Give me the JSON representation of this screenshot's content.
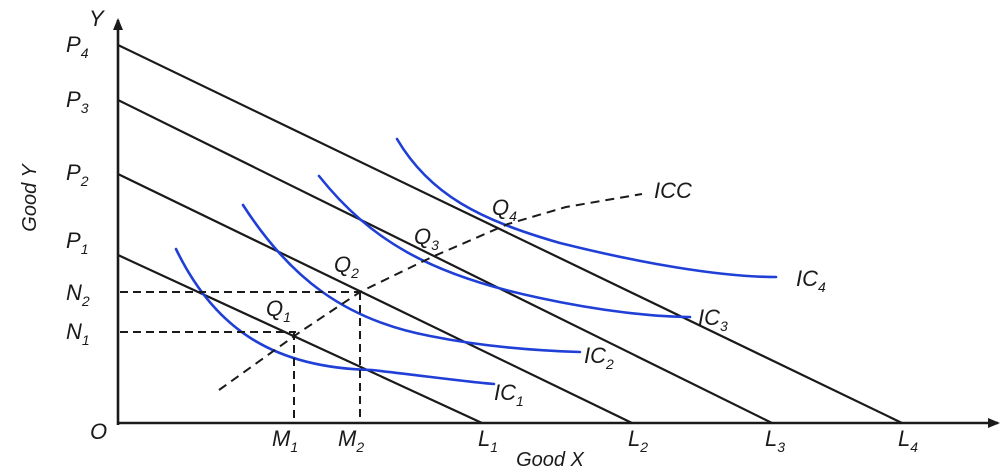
{
  "axes": {
    "x_name": "Good X",
    "y_name": "Good Y",
    "y_letter": "Y",
    "origin": "O"
  },
  "budget_lines": [
    {
      "p": "P",
      "p_sub": "4",
      "l": "L",
      "l_sub": "4"
    },
    {
      "p": "P",
      "p_sub": "3",
      "l": "L",
      "l_sub": "3"
    },
    {
      "p": "P",
      "p_sub": "2",
      "l": "L",
      "l_sub": "2"
    },
    {
      "p": "P",
      "p_sub": "1",
      "l": "L",
      "l_sub": "1"
    }
  ],
  "indifference_curves": [
    {
      "name": "IC",
      "sub": "1"
    },
    {
      "name": "IC",
      "sub": "2"
    },
    {
      "name": "IC",
      "sub": "3"
    },
    {
      "name": "IC",
      "sub": "4"
    }
  ],
  "equilibria": [
    {
      "name": "Q",
      "sub": "1"
    },
    {
      "name": "Q",
      "sub": "2"
    },
    {
      "name": "Q",
      "sub": "3"
    },
    {
      "name": "Q",
      "sub": "4"
    }
  ],
  "guides": {
    "n1": "N",
    "n1_sub": "1",
    "n2": "N",
    "n2_sub": "2",
    "m1": "M",
    "m1_sub": "1",
    "m2": "M",
    "m2_sub": "2"
  },
  "icc_label": "ICC",
  "colors": {
    "ic_curve": "#1f3fd6",
    "lines": "#1a1a1a"
  }
}
